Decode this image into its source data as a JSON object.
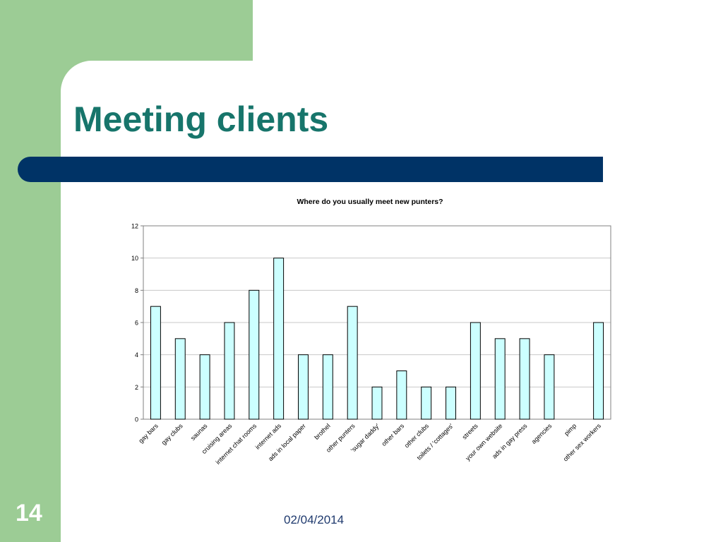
{
  "slide": {
    "title": "Meeting clients",
    "number": "14",
    "date": "02/04/2014"
  },
  "colors": {
    "background_green": "#9ccc95",
    "title_teal": "#17756b",
    "band_navy": "#003366",
    "bar_fill": "#ccffff",
    "bar_stroke": "#000000"
  },
  "chart_data": {
    "type": "bar",
    "title": "Where do you usually meet new punters?",
    "xlabel": "",
    "ylabel": "",
    "ylim": [
      0,
      12
    ],
    "yticks": [
      0,
      2,
      4,
      6,
      8,
      10,
      12
    ],
    "grid": true,
    "legend": "none",
    "categories": [
      "gay bars",
      "gay clubs",
      "saunas",
      "cruising areas",
      "internet chat rooms",
      "internet ads",
      "ads in local paper",
      "brothel",
      "other punters",
      "'sugar daddy'",
      "other bars",
      "other clubs",
      "toilets / 'cottages'",
      "streets",
      "your own website",
      "ads in gay press",
      "agencies",
      "pimp",
      "other sex workers"
    ],
    "values": [
      7,
      5,
      4,
      6,
      8,
      10,
      4,
      4,
      7,
      2,
      3,
      2,
      2,
      6,
      5,
      5,
      4,
      0,
      6
    ]
  }
}
